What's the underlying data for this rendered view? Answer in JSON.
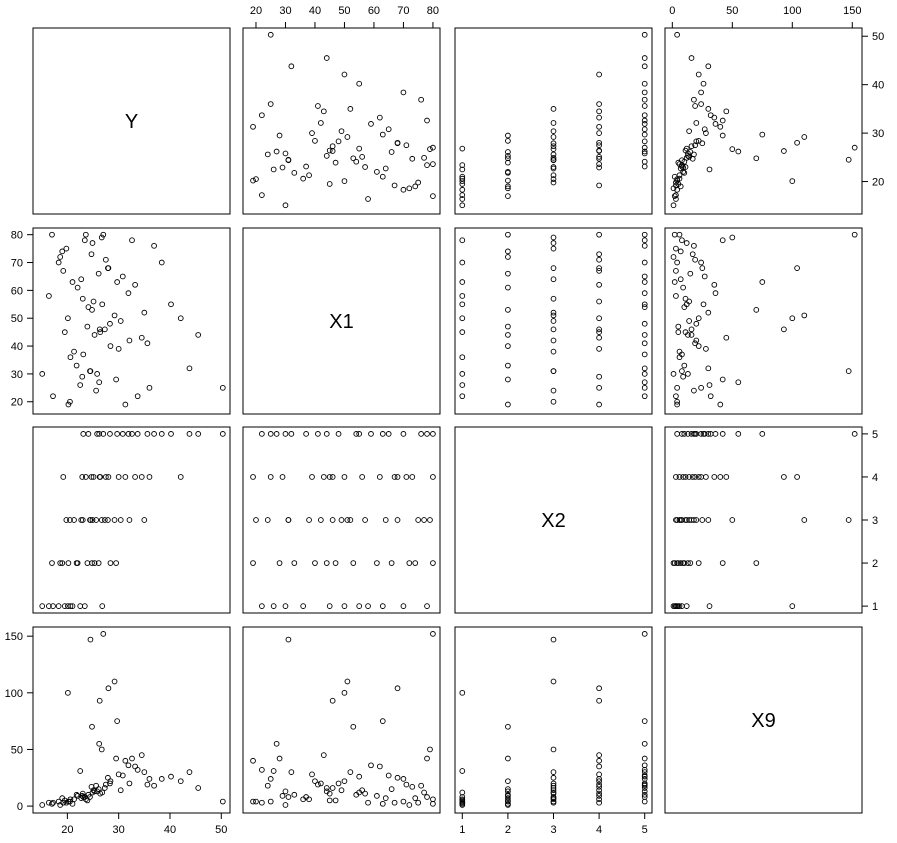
{
  "chart_data": {
    "type": "scatter-matrix",
    "variables": [
      {
        "name": "Y",
        "lim": [
          13.3,
          51.7
        ],
        "ticks": [
          20,
          30,
          40,
          50
        ],
        "values": [
          17.2,
          19.5,
          21.0,
          23.4,
          15.1,
          26.8,
          18.3,
          20.6,
          20.1,
          16.4,
          22.5,
          19.0,
          21.8,
          23.9,
          26.1,
          17.0,
          28.4,
          20.2,
          24.8,
          22.0,
          29.5,
          18.6,
          25.3,
          21.3,
          23.0,
          25.6,
          27.9,
          30.4,
          19.8,
          24.4,
          26.7,
          32.1,
          22.7,
          24.5,
          35.0,
          20.5,
          29.2,
          24.9,
          27.3,
          22.9,
          25.1,
          27.5,
          30.0,
          33.2,
          36.0,
          42.1,
          23.6,
          28.0,
          26.4,
          31.3,
          19.2,
          26.3,
          24.7,
          34.5,
          25.8,
          28.3,
          30.8,
          33.7,
          36.9,
          40.2,
          45.5,
          50.3,
          27.0,
          23.1,
          31.9,
          38.4,
          26.2,
          29.7,
          35.6,
          43.8,
          24.1,
          32.6
        ]
      },
      {
        "name": "X1",
        "lim": [
          15.6,
          82.4
        ],
        "ticks": [
          20,
          30,
          40,
          50,
          60,
          70,
          80
        ],
        "values": [
          22,
          45,
          63,
          78,
          30,
          55,
          70,
          36,
          50,
          58,
          26,
          74,
          33,
          47,
          66,
          80,
          40,
          19,
          53,
          61,
          28,
          72,
          44,
          38,
          57,
          24,
          68,
          49,
          75,
          31,
          79,
          42,
          64,
          31,
          52,
          20,
          51,
          77,
          46,
          29,
          56,
          71,
          39,
          62,
          25,
          50,
          80,
          68,
          45,
          19,
          67,
          46,
          73,
          43,
          30,
          48,
          65,
          22,
          76,
          55,
          44,
          25,
          80,
          37,
          59,
          70,
          27,
          63,
          41,
          32,
          54,
          78
        ]
      },
      {
        "name": "X2",
        "lim": [
          0.84,
          5.16
        ],
        "ticks": [
          1,
          2,
          3,
          4,
          5
        ],
        "values": [
          1,
          1,
          1,
          1,
          1,
          1,
          1,
          1,
          1,
          1,
          1,
          2,
          2,
          2,
          2,
          2,
          2,
          2,
          2,
          2,
          2,
          2,
          2,
          3,
          3,
          3,
          3,
          3,
          3,
          3,
          3,
          3,
          3,
          3,
          3,
          3,
          3,
          3,
          3,
          4,
          4,
          4,
          4,
          4,
          4,
          4,
          4,
          4,
          4,
          4,
          4,
          4,
          4,
          4,
          5,
          5,
          5,
          5,
          5,
          5,
          5,
          5,
          5,
          5,
          5,
          5,
          5,
          5,
          5,
          5,
          5,
          5
        ]
      },
      {
        "name": "X9",
        "lim": [
          -6.1,
          158.1
        ],
        "ticks": [
          0,
          50,
          100,
          150
        ],
        "values": [
          3,
          5,
          2,
          8,
          1,
          12,
          4,
          6,
          100,
          3,
          31,
          7,
          10,
          5,
          15,
          2,
          22,
          4,
          70,
          9,
          42,
          1,
          13,
          6,
          11,
          18,
          25,
          14,
          3,
          8,
          50,
          20,
          7,
          147,
          30,
          4,
          110,
          12,
          16,
          9,
          14,
          19,
          28,
          35,
          24,
          22,
          6,
          104,
          11,
          40,
          3,
          93,
          17,
          45,
          13,
          20,
          27,
          32,
          18,
          26,
          16,
          4,
          152,
          8,
          36,
          24,
          55,
          75,
          19,
          30,
          10,
          42
        ]
      }
    ]
  }
}
